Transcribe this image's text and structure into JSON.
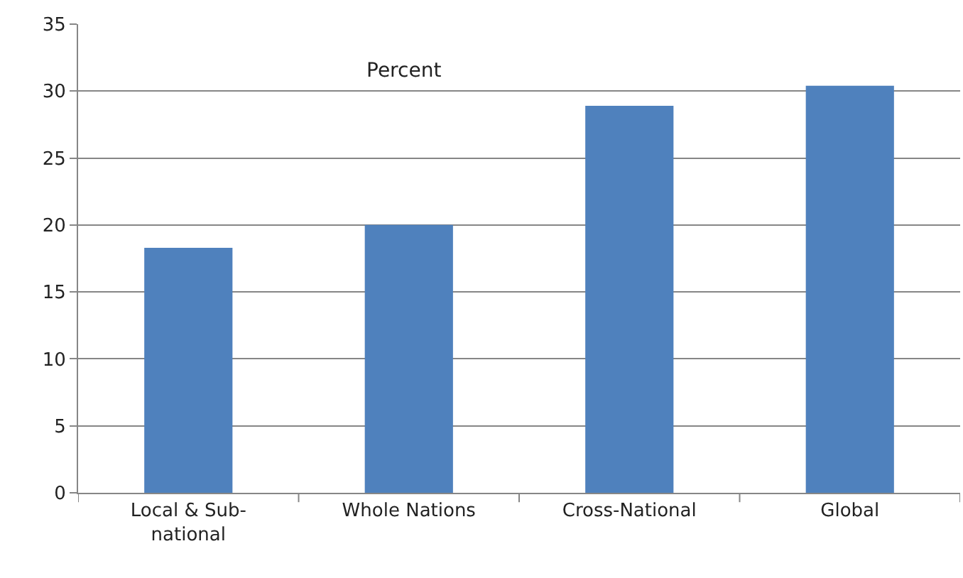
{
  "chart_data": {
    "type": "bar",
    "title": "Percent",
    "categories": [
      "Local & Sub-national",
      "Whole Nations",
      "Cross-National",
      "Global"
    ],
    "values": [
      18.3,
      20.0,
      28.9,
      30.4
    ],
    "color": "#4f81bd",
    "ylim": [
      0,
      35
    ],
    "yticks": [
      0,
      5,
      10,
      15,
      20,
      25,
      30,
      35
    ],
    "grid": "y"
  }
}
